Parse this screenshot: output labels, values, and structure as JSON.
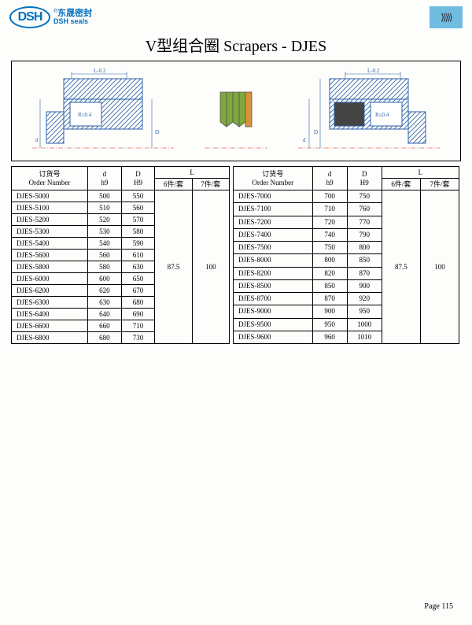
{
  "logo": {
    "mark": "DSH",
    "cn": "东晟密封",
    "en": "DSH seals",
    "reg": "®"
  },
  "badge_glyph": "⟩⟩⟩⟩⟩",
  "title": "V型组合圈 Scrapers - DJES",
  "diagram": {
    "dim_L": "L-0.2",
    "dim_R": "R≤0.4",
    "dim_d": "d",
    "dim_D": "D",
    "hatch_fill": "#ffffff",
    "hatch_stroke": "#2a60a8",
    "seal_green": "#7fa83c",
    "seal_orange": "#d8923a",
    "baseline_red": "#d02020"
  },
  "table_headers": {
    "order_cn": "订货号",
    "order_en": "Order Number",
    "d": "d",
    "d_sub": "h9",
    "D": "D",
    "D_sub": "H9",
    "L": "L",
    "L6": "6件/套",
    "L7": "7件/套"
  },
  "left_rows": [
    {
      "order": "DJES-5000",
      "d": "500",
      "D": "550"
    },
    {
      "order": "DJES-5100",
      "d": "510",
      "D": "560"
    },
    {
      "order": "DJES-5200",
      "d": "520",
      "D": "570"
    },
    {
      "order": "DJES-5300",
      "d": "530",
      "D": "580"
    },
    {
      "order": "DJES-5400",
      "d": "540",
      "D": "590"
    },
    {
      "order": "DJES-5600",
      "d": "560",
      "D": "610"
    },
    {
      "order": "DJES-5800",
      "d": "580",
      "D": "630"
    },
    {
      "order": "DJES-6000",
      "d": "600",
      "D": "650"
    },
    {
      "order": "DJES-6200",
      "d": "620",
      "D": "670"
    },
    {
      "order": "DJES-6300",
      "d": "630",
      "D": "680"
    },
    {
      "order": "DJES-6400",
      "d": "640",
      "D": "690"
    },
    {
      "order": "DJES-6600",
      "d": "660",
      "D": "710"
    },
    {
      "order": "DJES-6800",
      "d": "680",
      "D": "730"
    }
  ],
  "right_rows": [
    {
      "order": "DJES-7000",
      "d": "700",
      "D": "750"
    },
    {
      "order": "DJES-7100",
      "d": "710",
      "D": "760"
    },
    {
      "order": "DJES-7200",
      "d": "720",
      "D": "770"
    },
    {
      "order": "DJES-7400",
      "d": "740",
      "D": "790"
    },
    {
      "order": "DJES-7500",
      "d": "750",
      "D": "800"
    },
    {
      "order": "DJES-8000",
      "d": "800",
      "D": "850"
    },
    {
      "order": "DJES-8200",
      "d": "820",
      "D": "870"
    },
    {
      "order": "DJES-8500",
      "d": "850",
      "D": "900"
    },
    {
      "order": "DJES-8700",
      "d": "870",
      "D": "920"
    },
    {
      "order": "DJES-9000",
      "d": "900",
      "D": "950"
    },
    {
      "order": "DJES-9500",
      "d": "950",
      "D": "1000"
    },
    {
      "order": "DJES-9600",
      "d": "960",
      "D": "1010"
    }
  ],
  "L_values": {
    "six": "87.5",
    "seven": "100"
  },
  "page": "Page 115"
}
